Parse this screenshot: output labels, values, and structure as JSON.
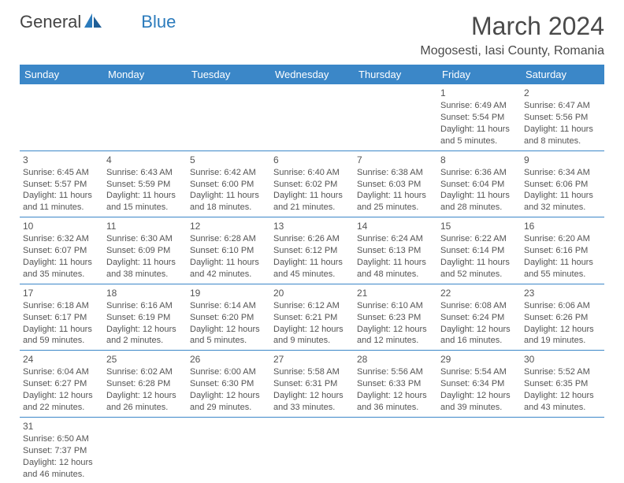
{
  "logo": {
    "part1": "General",
    "part2": "Blue"
  },
  "title": "March 2024",
  "location": "Mogosesti, Iasi County, Romania",
  "colors": {
    "header_bg": "#3b87c8",
    "header_text": "#ffffff",
    "border": "#3b87c8",
    "body_text": "#545454",
    "logo_blue": "#2b7bbc",
    "background": "#ffffff"
  },
  "typography": {
    "title_size": 32,
    "location_size": 16,
    "weekday_size": 13,
    "cell_size": 11,
    "font_family": "Arial"
  },
  "weekdays": [
    "Sunday",
    "Monday",
    "Tuesday",
    "Wednesday",
    "Thursday",
    "Friday",
    "Saturday"
  ],
  "cells": [
    [
      null,
      null,
      null,
      null,
      null,
      {
        "day": "1",
        "sunrise": "Sunrise: 6:49 AM",
        "sunset": "Sunset: 5:54 PM",
        "daylight1": "Daylight: 11 hours",
        "daylight2": "and 5 minutes."
      },
      {
        "day": "2",
        "sunrise": "Sunrise: 6:47 AM",
        "sunset": "Sunset: 5:56 PM",
        "daylight1": "Daylight: 11 hours",
        "daylight2": "and 8 minutes."
      }
    ],
    [
      {
        "day": "3",
        "sunrise": "Sunrise: 6:45 AM",
        "sunset": "Sunset: 5:57 PM",
        "daylight1": "Daylight: 11 hours",
        "daylight2": "and 11 minutes."
      },
      {
        "day": "4",
        "sunrise": "Sunrise: 6:43 AM",
        "sunset": "Sunset: 5:59 PM",
        "daylight1": "Daylight: 11 hours",
        "daylight2": "and 15 minutes."
      },
      {
        "day": "5",
        "sunrise": "Sunrise: 6:42 AM",
        "sunset": "Sunset: 6:00 PM",
        "daylight1": "Daylight: 11 hours",
        "daylight2": "and 18 minutes."
      },
      {
        "day": "6",
        "sunrise": "Sunrise: 6:40 AM",
        "sunset": "Sunset: 6:02 PM",
        "daylight1": "Daylight: 11 hours",
        "daylight2": "and 21 minutes."
      },
      {
        "day": "7",
        "sunrise": "Sunrise: 6:38 AM",
        "sunset": "Sunset: 6:03 PM",
        "daylight1": "Daylight: 11 hours",
        "daylight2": "and 25 minutes."
      },
      {
        "day": "8",
        "sunrise": "Sunrise: 6:36 AM",
        "sunset": "Sunset: 6:04 PM",
        "daylight1": "Daylight: 11 hours",
        "daylight2": "and 28 minutes."
      },
      {
        "day": "9",
        "sunrise": "Sunrise: 6:34 AM",
        "sunset": "Sunset: 6:06 PM",
        "daylight1": "Daylight: 11 hours",
        "daylight2": "and 32 minutes."
      }
    ],
    [
      {
        "day": "10",
        "sunrise": "Sunrise: 6:32 AM",
        "sunset": "Sunset: 6:07 PM",
        "daylight1": "Daylight: 11 hours",
        "daylight2": "and 35 minutes."
      },
      {
        "day": "11",
        "sunrise": "Sunrise: 6:30 AM",
        "sunset": "Sunset: 6:09 PM",
        "daylight1": "Daylight: 11 hours",
        "daylight2": "and 38 minutes."
      },
      {
        "day": "12",
        "sunrise": "Sunrise: 6:28 AM",
        "sunset": "Sunset: 6:10 PM",
        "daylight1": "Daylight: 11 hours",
        "daylight2": "and 42 minutes."
      },
      {
        "day": "13",
        "sunrise": "Sunrise: 6:26 AM",
        "sunset": "Sunset: 6:12 PM",
        "daylight1": "Daylight: 11 hours",
        "daylight2": "and 45 minutes."
      },
      {
        "day": "14",
        "sunrise": "Sunrise: 6:24 AM",
        "sunset": "Sunset: 6:13 PM",
        "daylight1": "Daylight: 11 hours",
        "daylight2": "and 48 minutes."
      },
      {
        "day": "15",
        "sunrise": "Sunrise: 6:22 AM",
        "sunset": "Sunset: 6:14 PM",
        "daylight1": "Daylight: 11 hours",
        "daylight2": "and 52 minutes."
      },
      {
        "day": "16",
        "sunrise": "Sunrise: 6:20 AM",
        "sunset": "Sunset: 6:16 PM",
        "daylight1": "Daylight: 11 hours",
        "daylight2": "and 55 minutes."
      }
    ],
    [
      {
        "day": "17",
        "sunrise": "Sunrise: 6:18 AM",
        "sunset": "Sunset: 6:17 PM",
        "daylight1": "Daylight: 11 hours",
        "daylight2": "and 59 minutes."
      },
      {
        "day": "18",
        "sunrise": "Sunrise: 6:16 AM",
        "sunset": "Sunset: 6:19 PM",
        "daylight1": "Daylight: 12 hours",
        "daylight2": "and 2 minutes."
      },
      {
        "day": "19",
        "sunrise": "Sunrise: 6:14 AM",
        "sunset": "Sunset: 6:20 PM",
        "daylight1": "Daylight: 12 hours",
        "daylight2": "and 5 minutes."
      },
      {
        "day": "20",
        "sunrise": "Sunrise: 6:12 AM",
        "sunset": "Sunset: 6:21 PM",
        "daylight1": "Daylight: 12 hours",
        "daylight2": "and 9 minutes."
      },
      {
        "day": "21",
        "sunrise": "Sunrise: 6:10 AM",
        "sunset": "Sunset: 6:23 PM",
        "daylight1": "Daylight: 12 hours",
        "daylight2": "and 12 minutes."
      },
      {
        "day": "22",
        "sunrise": "Sunrise: 6:08 AM",
        "sunset": "Sunset: 6:24 PM",
        "daylight1": "Daylight: 12 hours",
        "daylight2": "and 16 minutes."
      },
      {
        "day": "23",
        "sunrise": "Sunrise: 6:06 AM",
        "sunset": "Sunset: 6:26 PM",
        "daylight1": "Daylight: 12 hours",
        "daylight2": "and 19 minutes."
      }
    ],
    [
      {
        "day": "24",
        "sunrise": "Sunrise: 6:04 AM",
        "sunset": "Sunset: 6:27 PM",
        "daylight1": "Daylight: 12 hours",
        "daylight2": "and 22 minutes."
      },
      {
        "day": "25",
        "sunrise": "Sunrise: 6:02 AM",
        "sunset": "Sunset: 6:28 PM",
        "daylight1": "Daylight: 12 hours",
        "daylight2": "and 26 minutes."
      },
      {
        "day": "26",
        "sunrise": "Sunrise: 6:00 AM",
        "sunset": "Sunset: 6:30 PM",
        "daylight1": "Daylight: 12 hours",
        "daylight2": "and 29 minutes."
      },
      {
        "day": "27",
        "sunrise": "Sunrise: 5:58 AM",
        "sunset": "Sunset: 6:31 PM",
        "daylight1": "Daylight: 12 hours",
        "daylight2": "and 33 minutes."
      },
      {
        "day": "28",
        "sunrise": "Sunrise: 5:56 AM",
        "sunset": "Sunset: 6:33 PM",
        "daylight1": "Daylight: 12 hours",
        "daylight2": "and 36 minutes."
      },
      {
        "day": "29",
        "sunrise": "Sunrise: 5:54 AM",
        "sunset": "Sunset: 6:34 PM",
        "daylight1": "Daylight: 12 hours",
        "daylight2": "and 39 minutes."
      },
      {
        "day": "30",
        "sunrise": "Sunrise: 5:52 AM",
        "sunset": "Sunset: 6:35 PM",
        "daylight1": "Daylight: 12 hours",
        "daylight2": "and 43 minutes."
      }
    ],
    [
      {
        "day": "31",
        "sunrise": "Sunrise: 6:50 AM",
        "sunset": "Sunset: 7:37 PM",
        "daylight1": "Daylight: 12 hours",
        "daylight2": "and 46 minutes."
      },
      null,
      null,
      null,
      null,
      null,
      null
    ]
  ]
}
